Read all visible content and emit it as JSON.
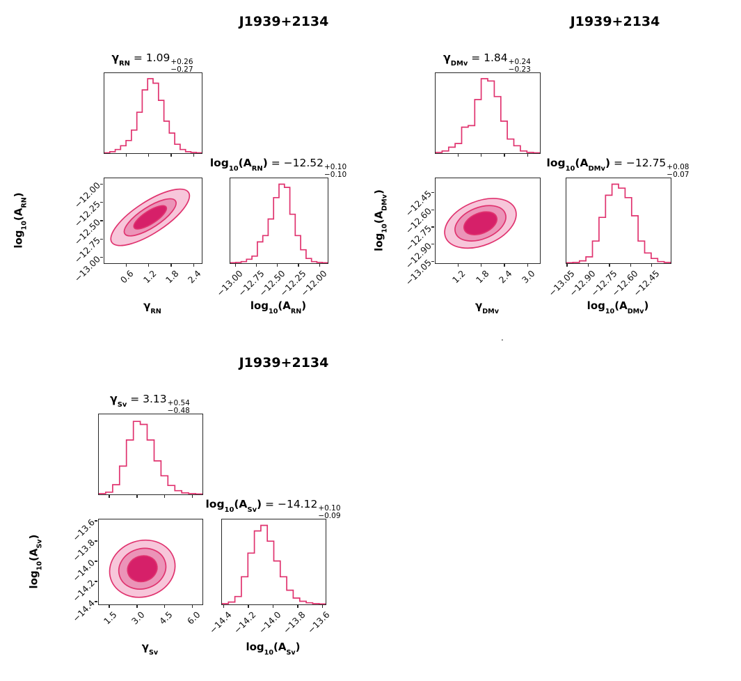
{
  "figure": {
    "background": "#ffffff"
  },
  "colors": {
    "line": "#e0336f",
    "fill_inner": "#d62069",
    "fill_mid": "#eb94b8",
    "fill_outer": "#f7c6da",
    "axis": "#262626",
    "text": "#000000"
  },
  "stray_dot": ".",
  "chart_data": {
    "type": "corner_plot_grid",
    "description": "Three two-parameter posterior corner plots (1D marginal histograms + 2D credible-region contours) for pulsar J1939+2134: red noise (RN), dispersion-measure variations (DMv) and scattering variations (Sv).",
    "corners": [
      {
        "title": "J1939+2134",
        "params": {
          "gamma": {
            "label_segs": [
              {
                "t": "γ",
                "b": 1
              },
              {
                "sub": "RN",
                "b": 1
              }
            ],
            "value": "1.09",
            "err_plus": "+0.26",
            "err_minus": "−0.27",
            "range": [
              0.0,
              2.6
            ],
            "tick_values": [
              0.6,
              1.2,
              1.8,
              2.4
            ],
            "tick_labels": [
              "0.6",
              "1.2",
              "1.8",
              "2.4"
            ],
            "hist": [
              0.005,
              0.02,
              0.05,
              0.1,
              0.17,
              0.31,
              0.55,
              0.85,
              1.0,
              0.94,
              0.71,
              0.43,
              0.27,
              0.12,
              0.05,
              0.02,
              0.01,
              0.005
            ]
          },
          "amp": {
            "label_segs": [
              {
                "t": "log",
                "b": 1
              },
              {
                "sub": "10",
                "b": 1
              },
              {
                "t": "(A",
                "b": 1
              },
              {
                "sub": "RN",
                "b": 1
              },
              {
                "t": ")",
                "b": 1
              }
            ],
            "value": "−12.52",
            "err_plus": "+0.10",
            "err_minus": "−0.10",
            "range": [
              -13.07,
              -11.91
            ],
            "tick_values": [
              -13.0,
              -12.75,
              -12.5,
              -12.25,
              -12.0
            ],
            "tick_labels": [
              "−13.00",
              "−12.75",
              "−12.50",
              "−12.25",
              "−12.00"
            ],
            "hist": [
              0.005,
              0.01,
              0.02,
              0.05,
              0.09,
              0.27,
              0.35,
              0.56,
              0.83,
              1.0,
              0.96,
              0.62,
              0.35,
              0.17,
              0.06,
              0.02,
              0.01,
              0.005
            ]
          }
        },
        "contour": {
          "center": [
            0.47,
            0.46
          ],
          "angle": -33,
          "levels": [
            [
              0.47,
              0.185
            ],
            [
              0.31,
              0.12
            ],
            [
              0.195,
              0.075
            ]
          ]
        }
      },
      {
        "title": "J1939+2134",
        "params": {
          "gamma": {
            "label_segs": [
              {
                "t": "γ",
                "b": 1
              },
              {
                "sub": "DMv",
                "b": 1
              }
            ],
            "value": "1.84",
            "err_plus": "+0.24",
            "err_minus": "−0.23",
            "range": [
              0.6,
              3.3
            ],
            "tick_values": [
              1.2,
              1.8,
              2.4,
              3.0
            ],
            "tick_labels": [
              "1.2",
              "1.8",
              "2.4",
              "3.0"
            ],
            "hist": [
              0.01,
              0.03,
              0.08,
              0.13,
              0.35,
              0.37,
              0.72,
              1.0,
              0.97,
              0.76,
              0.43,
              0.19,
              0.1,
              0.03,
              0.01,
              0.005
            ]
          },
          "amp": {
            "label_segs": [
              {
                "t": "log",
                "b": 1
              },
              {
                "sub": "10",
                "b": 1
              },
              {
                "t": "(A",
                "b": 1
              },
              {
                "sub": "DMv",
                "b": 1
              },
              {
                "t": ")",
                "b": 1
              }
            ],
            "value": "−12.75",
            "err_plus": "+0.08",
            "err_minus": "−0.07",
            "range": [
              -13.06,
              -12.32
            ],
            "tick_values": [
              -13.05,
              -12.9,
              -12.75,
              -12.6,
              -12.45
            ],
            "tick_labels": [
              "−13.05",
              "−12.90",
              "−12.75",
              "−12.60",
              "−12.45"
            ],
            "hist": [
              0.005,
              0.01,
              0.03,
              0.08,
              0.28,
              0.58,
              0.86,
              1.0,
              0.95,
              0.83,
              0.6,
              0.28,
              0.13,
              0.06,
              0.02,
              0.01
            ]
          }
        },
        "contour": {
          "center": [
            0.43,
            0.53
          ],
          "angle": -22,
          "levels": [
            [
              0.36,
              0.26
            ],
            [
              0.255,
              0.185
            ],
            [
              0.165,
              0.12
            ]
          ]
        }
      },
      {
        "title": "J1939+2134",
        "params": {
          "gamma": {
            "label_segs": [
              {
                "t": "γ",
                "b": 1
              },
              {
                "sub": "Sv",
                "b": 1
              }
            ],
            "value": "3.13",
            "err_plus": "+0.54",
            "err_minus": "−0.48",
            "range": [
              0.9,
              6.5
            ],
            "tick_values": [
              1.5,
              3.0,
              4.5,
              6.0
            ],
            "tick_labels": [
              "1.5",
              "3.0",
              "4.5",
              "6.0"
            ],
            "hist": [
              0.01,
              0.03,
              0.13,
              0.38,
              0.73,
              0.98,
              0.94,
              0.73,
              0.45,
              0.25,
              0.12,
              0.05,
              0.02,
              0.01,
              0.005
            ]
          },
          "amp": {
            "label_segs": [
              {
                "t": "log",
                "b": 1
              },
              {
                "sub": "10",
                "b": 1
              },
              {
                "t": "(A",
                "b": 1
              },
              {
                "sub": "Sv",
                "b": 1
              },
              {
                "t": ")",
                "b": 1
              }
            ],
            "value": "−14.12",
            "err_plus": "+0.10",
            "err_minus": "−0.09",
            "range": [
              -14.42,
              -13.58
            ],
            "tick_values": [
              -14.4,
              -14.2,
              -14.0,
              -13.8,
              -13.6
            ],
            "tick_labels": [
              "−14.4",
              "−14.2",
              "−14.0",
              "−13.8",
              "−13.6"
            ],
            "hist": [
              0.01,
              0.03,
              0.1,
              0.35,
              0.65,
              0.93,
              1.0,
              0.8,
              0.55,
              0.35,
              0.18,
              0.08,
              0.04,
              0.02,
              0.01,
              0.005
            ]
          }
        },
        "contour": {
          "center": [
            0.42,
            0.58
          ],
          "angle": -18,
          "levels": [
            [
              0.32,
              0.33
            ],
            [
              0.23,
              0.235
            ],
            [
              0.145,
              0.15
            ]
          ]
        }
      }
    ]
  }
}
